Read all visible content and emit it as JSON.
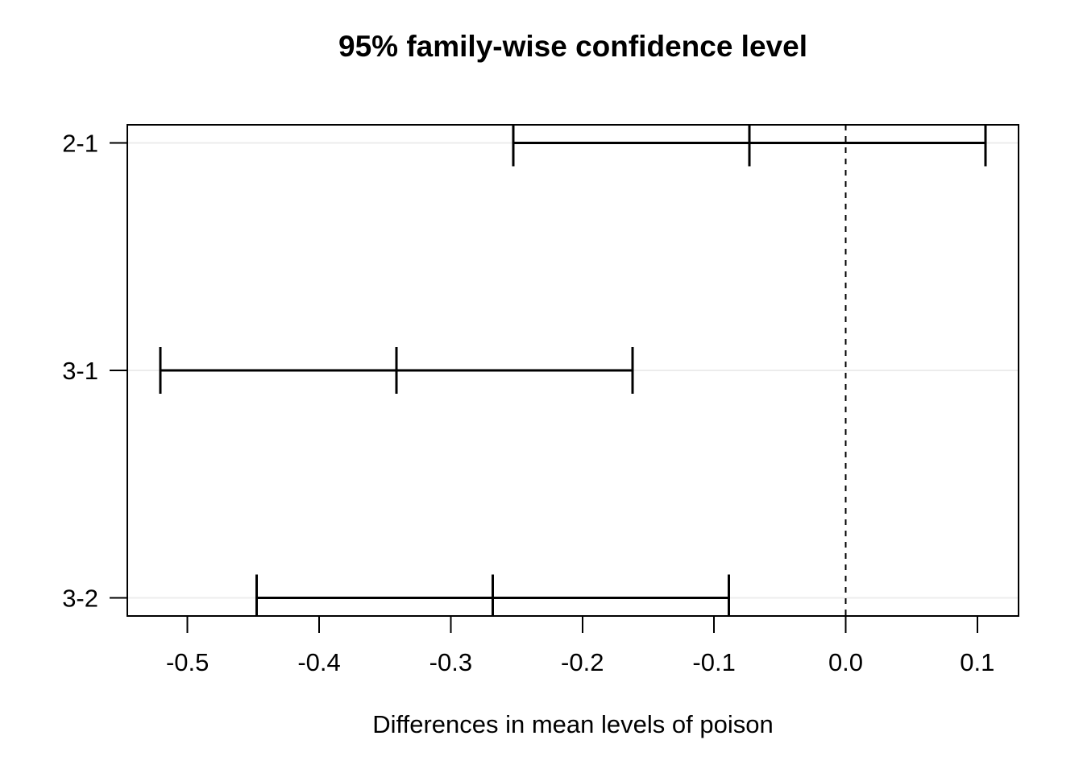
{
  "chart_data": {
    "type": "scatter",
    "variant": "tukey-hsd-confidence-intervals",
    "title": "95% family-wise confidence level",
    "xlabel": "Differences in mean levels of poison",
    "ylabel": "",
    "categories": [
      "2-1",
      "3-1",
      "3-2"
    ],
    "intervals": [
      {
        "label": "2-1",
        "lower": -0.2525,
        "center": -0.0731,
        "upper": 0.1063
      },
      {
        "label": "3-1",
        "lower": -0.5206,
        "center": -0.3413,
        "upper": -0.1619
      },
      {
        "label": "3-2",
        "lower": -0.4475,
        "center": -0.2681,
        "upper": -0.0887
      }
    ],
    "x_ticks": [
      -0.5,
      -0.4,
      -0.3,
      -0.2,
      -0.1,
      0.0,
      0.1
    ],
    "x_tick_labels": [
      "-0.5",
      "-0.4",
      "-0.3",
      "-0.2",
      "-0.1",
      "0.0",
      "0.1"
    ],
    "xlim": [
      -0.5457,
      0.1313
    ],
    "ylim": [
      0.92,
      3.08
    ],
    "y_positions": [
      3,
      2,
      1
    ],
    "reference_line": {
      "x": 0.0,
      "style": "dashed"
    },
    "grid": "light-horizontal-line-per-row",
    "legend": "none",
    "colors": {
      "line": "#000000",
      "row_gridline": "#ececec",
      "reference_line": "#000000",
      "background": "#ffffff",
      "text": "#000000"
    }
  }
}
